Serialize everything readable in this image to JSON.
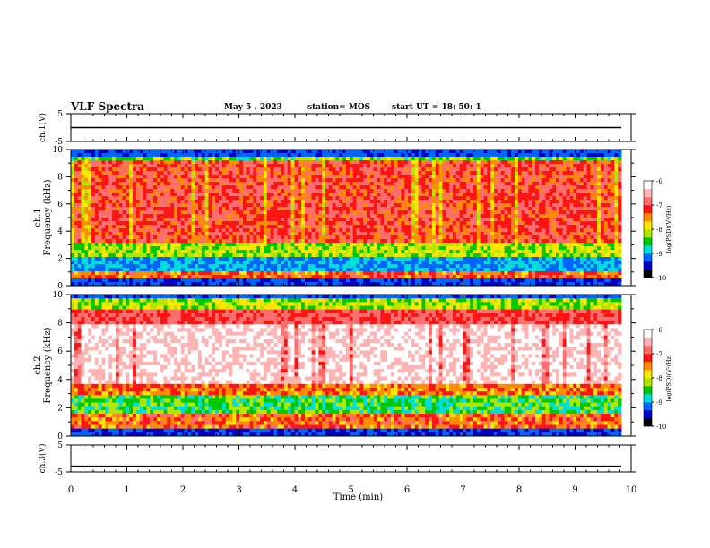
{
  "header": {
    "title": "VLF Spectra",
    "date": "May 5  , 2023",
    "station": "station= MOS",
    "start": "start  UT  =   18: 50: 1"
  },
  "chart_data": [
    {
      "type": "line",
      "panel": "ch1-voltage",
      "ylabel": "ch.1(V)",
      "yticks": [
        "5",
        "-5"
      ],
      "ylim": [
        -5,
        5
      ],
      "xlim": [
        0,
        10
      ],
      "series": [
        {
          "values": [
            0,
            0,
            0,
            0,
            0,
            0,
            0,
            0,
            0,
            0,
            0
          ]
        }
      ]
    },
    {
      "type": "heatmap",
      "panel": "ch1-spectrogram",
      "ylabel": "ch.1",
      "ylabel2": "Frequency (kHz)",
      "yticks": [
        "0",
        "2",
        "4",
        "6",
        "8",
        "10"
      ],
      "ylim": [
        0,
        10
      ],
      "xlim": [
        0,
        10
      ],
      "colorbar": {
        "label": "log(PSD)(V²/Hz)",
        "ticks": [
          "-6",
          "-7",
          "-8",
          "-9",
          "-10"
        ],
        "range": [
          -10,
          -6
        ]
      }
    },
    {
      "type": "heatmap",
      "panel": "ch2-spectrogram",
      "ylabel": "ch.2",
      "ylabel2": "Frequency (kHz)",
      "yticks": [
        "0",
        "2",
        "4",
        "6",
        "8",
        "10"
      ],
      "ylim": [
        0,
        10
      ],
      "xlim": [
        0,
        10
      ],
      "colorbar": {
        "label": "log(PSD)(V²/Hz)",
        "ticks": [
          "-6",
          "-7",
          "-8",
          "-9",
          "-10"
        ],
        "range": [
          -10,
          -6
        ]
      }
    },
    {
      "type": "line",
      "panel": "ch3-voltage",
      "ylabel": "ch.3(V)",
      "yticks": [
        "5",
        "-5"
      ],
      "ylim": [
        -5,
        5
      ],
      "xlim": [
        0,
        10
      ],
      "series": [
        {
          "values": [
            -2.9,
            -2.9,
            -2.9,
            -2.9,
            -2.9,
            -2.9,
            -2.9,
            -2.9,
            -2.9,
            -2.9,
            -2.9
          ]
        }
      ]
    }
  ],
  "xaxis": {
    "label": "Time  (min)",
    "ticks": [
      "0",
      "1",
      "2",
      "3",
      "4",
      "5",
      "6",
      "7",
      "8",
      "9",
      "10"
    ]
  },
  "colors": {
    "scale": [
      "#000000",
      "#0000c8",
      "#0064ff",
      "#00dcdc",
      "#00c800",
      "#b4e600",
      "#ffe600",
      "#ff8c00",
      "#ff1414",
      "#ff6e6e",
      "#ffb4b4",
      "#ffffff"
    ]
  }
}
